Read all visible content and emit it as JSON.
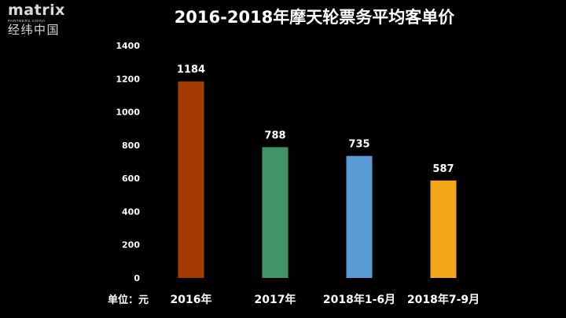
{
  "logo": {
    "word": "matrix",
    "sub": "PARTNERS CHINA",
    "cn": "经纬中国"
  },
  "colors": {
    "background": "#000000",
    "text": "#ffffff",
    "bars": [
      "#a33a04",
      "#3f9364",
      "#5b9bd5",
      "#f2a518"
    ]
  },
  "chart_data": {
    "type": "bar",
    "title": "2016-2018年摩天轮票务平均客单价",
    "unit_label": "单位：元",
    "categories": [
      "2016年",
      "2017年",
      "2018年1-6月",
      "2018年7-9月"
    ],
    "values": [
      1184,
      788,
      735,
      587
    ],
    "data_labels": [
      "1184",
      "788",
      "735",
      "587"
    ],
    "yticks": [
      "0",
      "200",
      "400",
      "600",
      "800",
      "1000",
      "1200",
      "1400"
    ],
    "ylim": [
      0,
      1400
    ],
    "grid": false,
    "legend": "none"
  }
}
